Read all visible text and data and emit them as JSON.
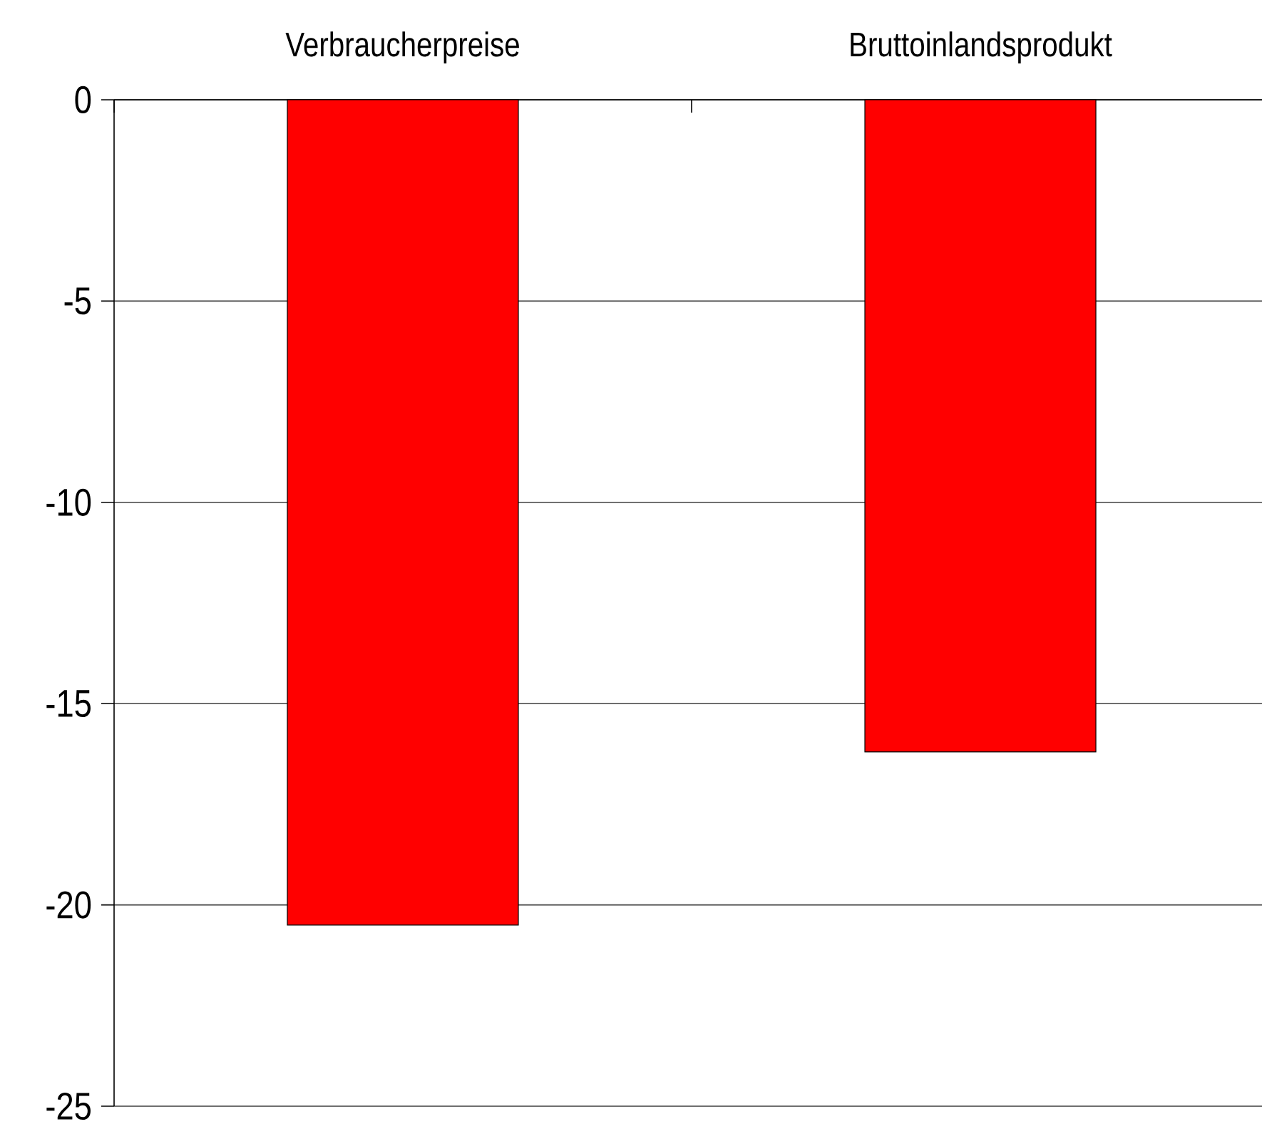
{
  "chart_data": {
    "type": "bar",
    "categories": [
      "Verbraucherpreise",
      "Bruttoinlandsprodukt"
    ],
    "values": [
      -20.5,
      -16.2
    ],
    "color": "#ff0000",
    "ylim": [
      -25,
      0
    ],
    "yticks": [
      -25,
      -20,
      -15,
      -10,
      -5,
      0
    ],
    "grid": "y"
  }
}
